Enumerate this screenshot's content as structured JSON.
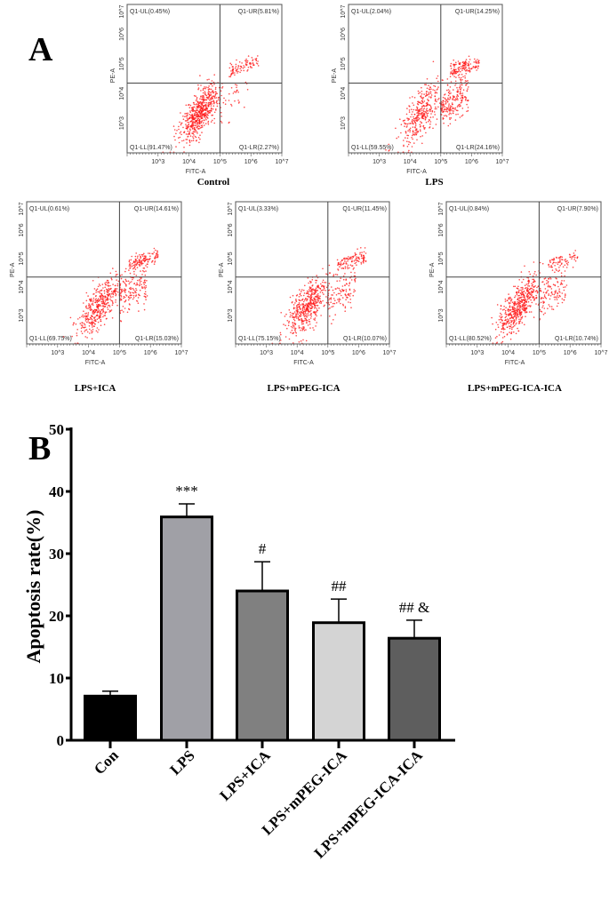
{
  "panel_a_label": "A",
  "panel_b_label": "B",
  "chart_data": [
    {
      "type": "scatter",
      "description_kind": "flow-cytometry-quadrant-plots",
      "xlabel": "FITC-A",
      "ylabel": "PE-A",
      "x_scale": "log",
      "y_scale": "log",
      "x_tick_labels": [
        "10^3",
        "10^4",
        "10^5",
        "10^6",
        "10^7"
      ],
      "y_tick_labels": [
        "10^3",
        "10^4",
        "10^5",
        "10^6",
        "10^7"
      ],
      "point_color": "#ff1a1a",
      "panels": [
        {
          "group": "Control",
          "UL": "Q1-UL(0.45%)",
          "UR": "Q1-UR(5.81%)",
          "LL": "Q1-LL(91.47%)",
          "LR": "Q1-LR(2.27%)"
        },
        {
          "group": "LPS",
          "UL": "Q1-UL(2.04%)",
          "UR": "Q1-UR(14.25%)",
          "LL": "Q1-LL(59.55%)",
          "LR": "Q1-LR(24.16%)"
        },
        {
          "group": "LPS+ICA",
          "UL": "Q1-UL(0.61%)",
          "UR": "Q1-UR(14.61%)",
          "LL": "Q1-LL(69.75%)",
          "LR": "Q1-LR(15.03%)"
        },
        {
          "group": "LPS+mPEG-ICA",
          "UL": "Q1-UL(3.33%)",
          "UR": "Q1-UR(11.45%)",
          "LL": "Q1-LL(75.15%)",
          "LR": "Q1-LR(10.07%)"
        },
        {
          "group": "LPS+mPEG-ICA-ICA",
          "UL": "Q1-UL(0.84%)",
          "UR": "Q1-UR(7.90%)",
          "LL": "Q1-LL(80.52%)",
          "LR": "Q1-LR(10.74%)"
        }
      ]
    },
    {
      "type": "bar",
      "ylabel": "Apoptosis rate(%)",
      "xlabel": "",
      "ylim": [
        0,
        50
      ],
      "yticks": [
        "0",
        "10",
        "20",
        "30",
        "40",
        "50"
      ],
      "grid": false,
      "categories": [
        "Con",
        "LPS",
        "LPS+ICA",
        "LPS+mPEG-ICA",
        "LPS+mPEG-ICA-ICA"
      ],
      "values": [
        7.1,
        35.9,
        24.0,
        18.9,
        16.4
      ],
      "error_upper": [
        7.9,
        38.0,
        28.7,
        22.7,
        19.3
      ],
      "significance": [
        "",
        "***",
        "#",
        "##",
        "## &"
      ],
      "colors": [
        "#000000",
        "#a0a0a6",
        "#808080",
        "#d4d4d4",
        "#5e5e5e"
      ]
    }
  ]
}
